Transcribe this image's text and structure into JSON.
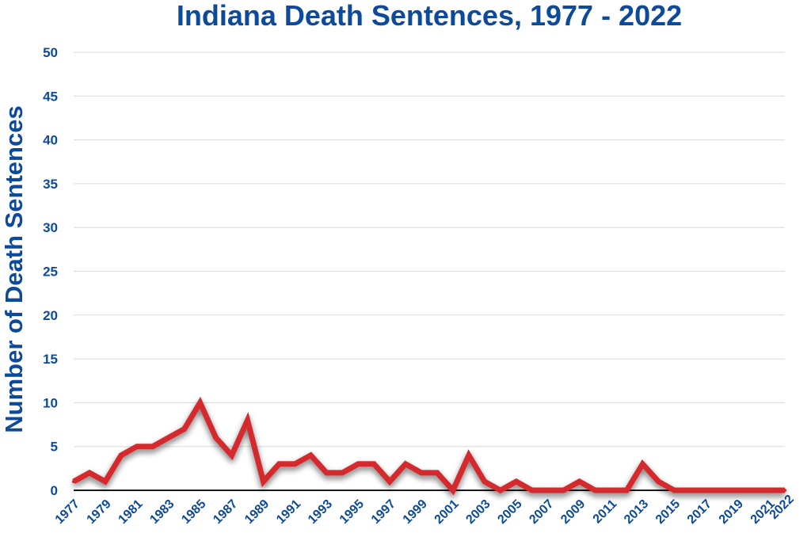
{
  "chart_data": {
    "type": "line",
    "title": "Indiana Death Sentences, 1977 - 2022",
    "xlabel": "",
    "ylabel": "Number of Death Sentences",
    "ylim": [
      0,
      50
    ],
    "yticks": [
      0,
      5,
      10,
      15,
      20,
      25,
      30,
      35,
      40,
      45,
      50
    ],
    "xlim": [
      1977,
      2022
    ],
    "xtick_labels": [
      "1977",
      "1979",
      "1981",
      "1983",
      "1985",
      "1987",
      "1989",
      "1991",
      "1993",
      "1995",
      "1997",
      "1999",
      "2001",
      "2003",
      "2005",
      "2007",
      "2009",
      "2011",
      "2013",
      "2015",
      "2017",
      "2019",
      "2021",
      "2022"
    ],
    "grid": true,
    "legend": "none",
    "x": [
      1977,
      1978,
      1979,
      1980,
      1981,
      1982,
      1983,
      1984,
      1985,
      1986,
      1987,
      1988,
      1989,
      1990,
      1991,
      1992,
      1993,
      1994,
      1995,
      1996,
      1997,
      1998,
      1999,
      2000,
      2001,
      2002,
      2003,
      2004,
      2005,
      2006,
      2007,
      2008,
      2009,
      2010,
      2011,
      2012,
      2013,
      2014,
      2015,
      2016,
      2017,
      2018,
      2019,
      2020,
      2021,
      2022
    ],
    "series": [
      {
        "color": "#d42a2f",
        "values": [
          1,
          2,
          1,
          4,
          5,
          5,
          6,
          7,
          10,
          6,
          4,
          8,
          1,
          3,
          3,
          4,
          2,
          2,
          3,
          3,
          1,
          3,
          2,
          2,
          0,
          4,
          1,
          0,
          1,
          0,
          0,
          0,
          1,
          0,
          0,
          0,
          3,
          1,
          0,
          0,
          0,
          0,
          0,
          0,
          0,
          0
        ]
      }
    ]
  },
  "colors": {
    "text": "#0d4a99",
    "grid": "#d9d9d9",
    "axis": "#1a1a1a",
    "line": "#d42a2f"
  }
}
